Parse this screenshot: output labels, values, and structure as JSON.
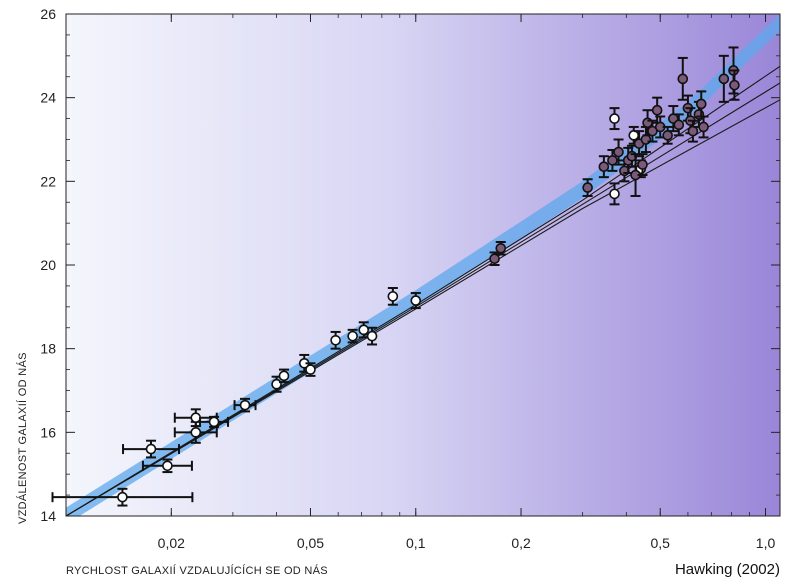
{
  "chart_data": {
    "type": "scatter",
    "title": "",
    "xlabel": "RYCHLOST GALAXIÍ VZDALUJÍCÍCH SE OD NÁS",
    "ylabel": "VZDÁLENOST GALAXIÍ OD NÁS",
    "credit": "Hawking (2002)",
    "x_scale": "log",
    "xlim": [
      0.01,
      1.1
    ],
    "ylim": [
      14,
      26
    ],
    "x_ticks": [
      0.02,
      0.05,
      0.1,
      0.2,
      0.5,
      1.0
    ],
    "x_tick_labels": [
      "0,02",
      "0,05",
      "0,1",
      "0,2",
      "0,5",
      "1,0"
    ],
    "y_ticks": [
      14,
      16,
      18,
      20,
      22,
      24,
      26
    ],
    "y_tick_labels": [
      "14",
      "16",
      "18",
      "20",
      "22",
      "24",
      "26"
    ],
    "colors": {
      "background_left": "#f4f6fc",
      "background_right": "#9a86d8",
      "band": "#5ea8ec",
      "fit_line": "#1a1a1a",
      "open_marker": "#ffffff",
      "filled_marker": "#7a5a78",
      "error_bar": "#111111"
    },
    "fit_lines": [
      {
        "name": "",
        "x": [
          0.01,
          0.1,
          0.3,
          1.1
        ],
        "y": [
          14.0,
          19.05,
          21.55,
          24.75
        ]
      },
      {
        "name": "",
        "x": [
          0.01,
          0.1,
          0.3,
          1.1
        ],
        "y": [
          14.0,
          19.0,
          21.45,
          24.35
        ]
      },
      {
        "name": "",
        "x": [
          0.01,
          0.1,
          0.3,
          1.1
        ],
        "y": [
          14.0,
          18.95,
          21.35,
          23.95
        ]
      }
    ],
    "band": {
      "x": [
        0.01,
        0.1,
        0.3,
        0.6,
        1.1
      ],
      "y": [
        14.0,
        19.2,
        21.8,
        23.7,
        25.8
      ],
      "half_width": 0.2
    },
    "series": [
      {
        "name": "",
        "marker": "open",
        "points": [
          {
            "x": 0.0145,
            "y": 14.45,
            "xerr": 0.2,
            "yerr": 0.2
          },
          {
            "x": 0.0175,
            "y": 15.6,
            "xerr": 0.08,
            "yerr": 0.2
          },
          {
            "x": 0.0195,
            "y": 15.2,
            "xerr": 0.07,
            "yerr": 0.15
          },
          {
            "x": 0.0235,
            "y": 16.0,
            "xerr": 0.06,
            "yerr": 0.25
          },
          {
            "x": 0.0235,
            "y": 16.35,
            "xerr": 0.06,
            "yerr": 0.2
          },
          {
            "x": 0.0265,
            "y": 16.25,
            "xerr": 0.04,
            "yerr": 0.12
          },
          {
            "x": 0.0325,
            "y": 16.65,
            "xerr": 0.03,
            "yerr": 0.15
          },
          {
            "x": 0.04,
            "y": 17.15,
            "xerr": 0,
            "yerr": 0.18
          },
          {
            "x": 0.042,
            "y": 17.35,
            "xerr": 0,
            "yerr": 0.15
          },
          {
            "x": 0.048,
            "y": 17.65,
            "xerr": 0,
            "yerr": 0.2
          },
          {
            "x": 0.05,
            "y": 17.5,
            "xerr": 0,
            "yerr": 0.15
          },
          {
            "x": 0.059,
            "y": 18.2,
            "xerr": 0,
            "yerr": 0.2
          },
          {
            "x": 0.066,
            "y": 18.3,
            "xerr": 0,
            "yerr": 0.15
          },
          {
            "x": 0.071,
            "y": 18.45,
            "xerr": 0,
            "yerr": 0.18
          },
          {
            "x": 0.075,
            "y": 18.3,
            "xerr": 0,
            "yerr": 0.2
          },
          {
            "x": 0.086,
            "y": 19.25,
            "xerr": 0,
            "yerr": 0.2
          },
          {
            "x": 0.1,
            "y": 19.15,
            "xerr": 0,
            "yerr": 0.18
          },
          {
            "x": 0.37,
            "y": 23.5,
            "xerr": 0,
            "yerr": 0.25
          },
          {
            "x": 0.37,
            "y": 21.7,
            "xerr": 0,
            "yerr": 0.25
          },
          {
            "x": 0.42,
            "y": 23.1,
            "xerr": 0,
            "yerr": 0.2
          },
          {
            "x": 0.44,
            "y": 22.3,
            "xerr": 0,
            "yerr": 0.2
          }
        ]
      },
      {
        "name": "",
        "marker": "filled",
        "points": [
          {
            "x": 0.168,
            "y": 20.15,
            "yerr": 0.15
          },
          {
            "x": 0.175,
            "y": 20.4,
            "yerr": 0.15
          },
          {
            "x": 0.31,
            "y": 21.85,
            "yerr": 0.2
          },
          {
            "x": 0.345,
            "y": 22.35,
            "yerr": 0.25
          },
          {
            "x": 0.365,
            "y": 22.5,
            "yerr": 0.25
          },
          {
            "x": 0.38,
            "y": 22.7,
            "yerr": 0.3
          },
          {
            "x": 0.395,
            "y": 22.25,
            "yerr": 0.25
          },
          {
            "x": 0.405,
            "y": 22.5,
            "yerr": 0.3
          },
          {
            "x": 0.415,
            "y": 22.6,
            "yerr": 0.25
          },
          {
            "x": 0.425,
            "y": 22.15,
            "yerr": 0.5
          },
          {
            "x": 0.435,
            "y": 22.9,
            "yerr": 0.3
          },
          {
            "x": 0.445,
            "y": 22.4,
            "yerr": 0.25
          },
          {
            "x": 0.455,
            "y": 23.0,
            "yerr": 0.3
          },
          {
            "x": 0.46,
            "y": 23.4,
            "yerr": 0.3
          },
          {
            "x": 0.475,
            "y": 23.2,
            "yerr": 0.25
          },
          {
            "x": 0.49,
            "y": 23.7,
            "yerr": 0.3
          },
          {
            "x": 0.5,
            "y": 23.3,
            "yerr": 0.25
          },
          {
            "x": 0.525,
            "y": 23.1,
            "yerr": 0.2
          },
          {
            "x": 0.545,
            "y": 23.5,
            "yerr": 0.3
          },
          {
            "x": 0.565,
            "y": 23.35,
            "yerr": 0.25
          },
          {
            "x": 0.58,
            "y": 24.45,
            "yerr": 0.5
          },
          {
            "x": 0.6,
            "y": 23.75,
            "yerr": 0.3
          },
          {
            "x": 0.61,
            "y": 23.45,
            "yerr": 0.3
          },
          {
            "x": 0.62,
            "y": 23.2,
            "yerr": 0.25
          },
          {
            "x": 0.645,
            "y": 23.6,
            "yerr": 0.3
          },
          {
            "x": 0.655,
            "y": 23.85,
            "yerr": 0.3
          },
          {
            "x": 0.665,
            "y": 23.3,
            "yerr": 0.25
          },
          {
            "x": 0.76,
            "y": 24.45,
            "yerr": 0.55
          },
          {
            "x": 0.81,
            "y": 24.65,
            "yerr": 0.55
          },
          {
            "x": 0.815,
            "y": 24.3,
            "yerr": 0.35
          }
        ]
      }
    ]
  }
}
